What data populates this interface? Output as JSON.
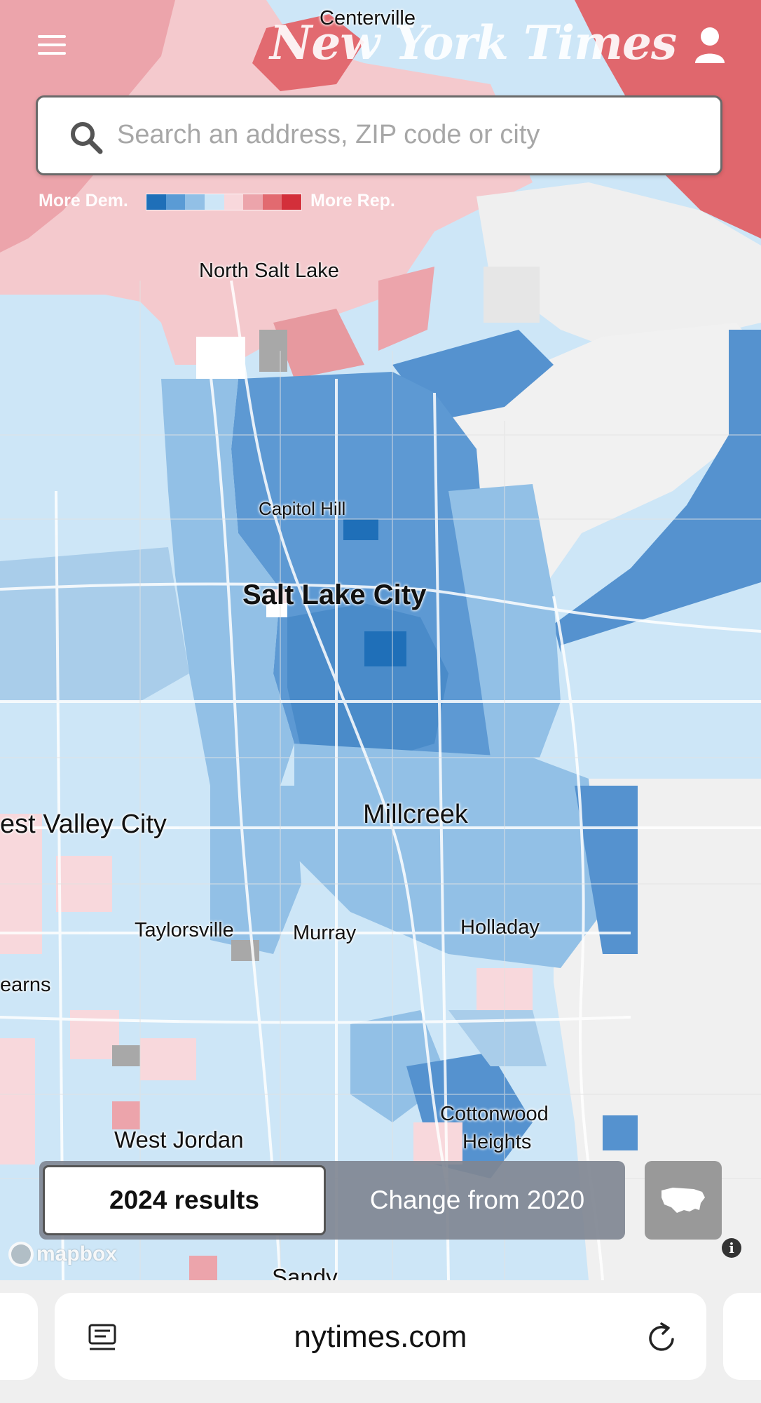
{
  "header": {
    "menu_icon": "hamburger-menu-icon",
    "masthead": "New York Times",
    "account_icon": "user-icon"
  },
  "search": {
    "placeholder": "Search an address, ZIP code or city",
    "icon": "search-icon"
  },
  "legend": {
    "left_label": "More Dem.",
    "right_label": "More Rep.",
    "colors": [
      "#1f6fb8",
      "#5a9bd5",
      "#92c0e6",
      "#cde6f7",
      "#f8d8dc",
      "#eca4ab",
      "#e26a70",
      "#d32f3a"
    ]
  },
  "map": {
    "places": [
      {
        "name": "Centerville"
      },
      {
        "name": "North Salt Lake"
      },
      {
        "name": "Capitol Hill"
      },
      {
        "name": "Salt Lake City"
      },
      {
        "name": "Millcreek"
      },
      {
        "name": "est Valley City"
      },
      {
        "name": "Taylorsville"
      },
      {
        "name": "Murray"
      },
      {
        "name": "Holladay"
      },
      {
        "name": "earns"
      },
      {
        "name": "Cottonwood"
      },
      {
        "name": "Heights"
      },
      {
        "name": "West Jordan"
      },
      {
        "name": "Sandy"
      }
    ],
    "attribution": "mapbox",
    "info_icon": "info-icon"
  },
  "toggle": {
    "active_label": "2024 results",
    "inactive_label": "Change from 2020",
    "us_map_icon": "us-map-icon"
  },
  "browser": {
    "url": "nytimes.com",
    "reader_icon": "reader-mode-icon",
    "reload_icon": "reload-icon"
  }
}
